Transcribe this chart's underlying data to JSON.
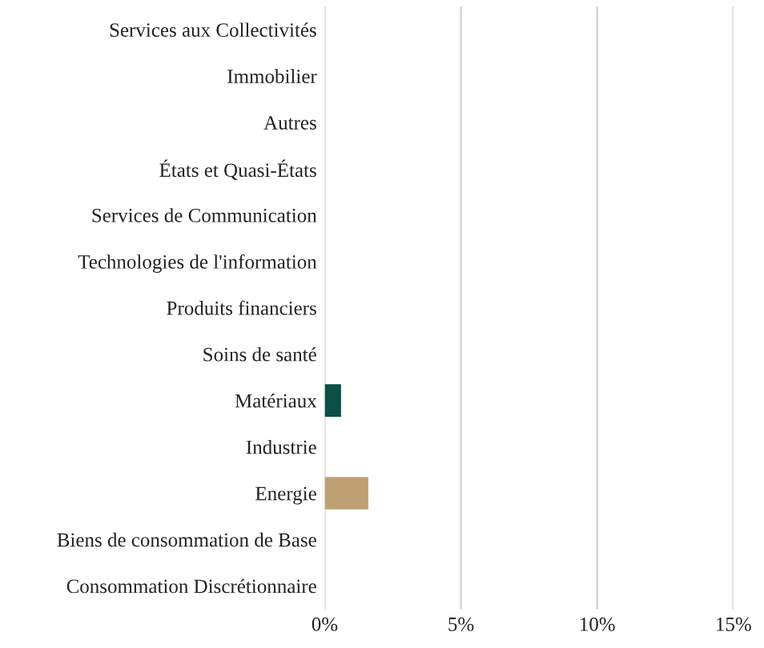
{
  "chart_data": {
    "type": "bar",
    "orientation": "horizontal",
    "categories": [
      "Services aux Collectivités",
      "Immobilier",
      "Autres",
      "États et Quasi-États",
      "Services de Communication",
      "Technologies de l'information",
      "Produits financiers",
      "Soins de santé",
      "Matériaux",
      "Industrie",
      "Energie",
      "Biens de consommation de Base",
      "Consommation Discrétionnaire"
    ],
    "values": [
      0,
      0,
      0,
      0,
      0,
      0,
      0,
      0,
      0.6,
      0,
      1.6,
      0,
      0
    ],
    "colors": [
      "#0d4f45",
      "#0d4f45",
      "#0d4f45",
      "#0d4f45",
      "#0d4f45",
      "#0d4f45",
      "#0d4f45",
      "#0d4f45",
      "#0d4f45",
      "#0d4f45",
      "#bfa073",
      "#0d4f45",
      "#0d4f45"
    ],
    "xlim": [
      0,
      15
    ],
    "xticks": [
      {
        "value": 0,
        "label": "0%"
      },
      {
        "value": 5,
        "label": "5%"
      },
      {
        "value": 10,
        "label": "10%"
      },
      {
        "value": 15,
        "label": "15%"
      }
    ],
    "grid": "x"
  }
}
